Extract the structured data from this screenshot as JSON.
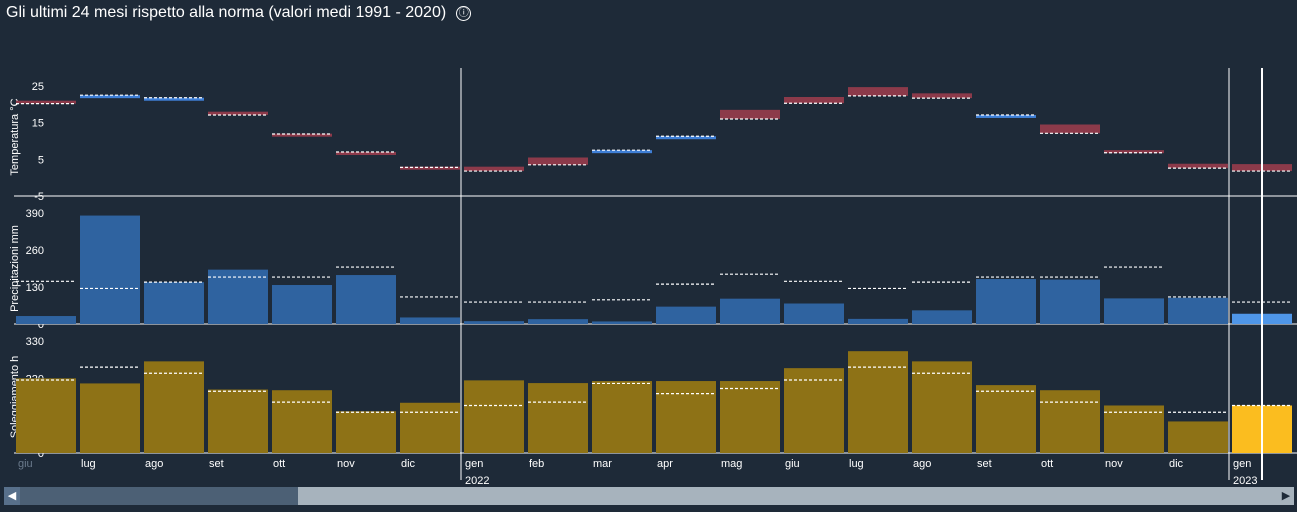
{
  "title": "Gli ultimi 24 mesi rispetto alla norma (valori medi 1991 - 2020)",
  "info_icon": "ⓘ",
  "colors": {
    "background": "#1e2a38",
    "temp_warm": "#8c3a4a",
    "temp_cold": "#3f7fd6",
    "precip_bar": "#2f63a0",
    "precip_highlight": "#4f96e8",
    "sun_bar": "#8e7216",
    "sun_highlight": "#fbbd1f",
    "norm_line": "#ffffff"
  },
  "scrollbar": {
    "left_arrow": "◀",
    "right_arrow": "▶"
  },
  "chart_data": [
    {
      "type": "bar",
      "name": "temperature",
      "ylabel": "Temperatura °C",
      "yticks": [
        25,
        15,
        5,
        -5
      ],
      "ylim": [
        -5,
        30
      ],
      "categories": [
        "giu",
        "lug",
        "ago",
        "set",
        "ott",
        "nov",
        "dic",
        "gen",
        "feb",
        "mar",
        "apr",
        "mag",
        "giu",
        "lug",
        "ago",
        "set",
        "ott",
        "nov",
        "dic",
        "gen"
      ],
      "values": [
        21,
        22,
        21,
        18,
        12,
        7,
        3,
        3,
        5.5,
        7,
        11,
        18.5,
        22,
        24.7,
        23,
        17,
        14.5,
        7.5,
        3.8,
        3.7
      ],
      "norms": [
        20.2,
        22.5,
        21.8,
        17.1,
        11.9,
        7.0,
        2.8,
        1.8,
        3.5,
        7.5,
        11.3,
        16.0,
        20.3,
        22.3,
        21.7,
        17.1,
        12.1,
        6.8,
        2.6,
        1.8
      ]
    },
    {
      "type": "bar",
      "name": "precipitation",
      "ylabel": "Precipitazioni mm",
      "yticks": [
        390,
        260,
        130,
        0
      ],
      "ylim": [
        0,
        390
      ],
      "categories": [
        "giu",
        "lug",
        "ago",
        "set",
        "ott",
        "nov",
        "dic",
        "gen",
        "feb",
        "mar",
        "apr",
        "mag",
        "giu",
        "lug",
        "ago",
        "set",
        "ott",
        "nov",
        "dic",
        "gen"
      ],
      "values": [
        28,
        381,
        147,
        191,
        137,
        172,
        23,
        10,
        17,
        9,
        61,
        89,
        72,
        18,
        48,
        158,
        156,
        90,
        92,
        36
      ],
      "norms": [
        150,
        125,
        147,
        165,
        165,
        200,
        95,
        77,
        77,
        85,
        140,
        175,
        150,
        125,
        147,
        165,
        165,
        200,
        95,
        77
      ]
    },
    {
      "type": "bar",
      "name": "sunshine",
      "ylabel": "Soleggiamento h",
      "yticks": [
        330,
        220,
        110,
        0
      ],
      "ylim": [
        0,
        330
      ],
      "categories": [
        "giu",
        "lug",
        "ago",
        "set",
        "ott",
        "nov",
        "dic",
        "gen",
        "feb",
        "mar",
        "apr",
        "mag",
        "giu",
        "lug",
        "ago",
        "set",
        "ott",
        "nov",
        "dic",
        "gen"
      ],
      "values": [
        220,
        205,
        270,
        187,
        185,
        123,
        148,
        214,
        206,
        212,
        212,
        212,
        250,
        300,
        270,
        200,
        185,
        140,
        93,
        140
      ],
      "norms": [
        215,
        253,
        235,
        182,
        150,
        120,
        120,
        140,
        150,
        205,
        175,
        190,
        215,
        253,
        235,
        182,
        150,
        120,
        120,
        140
      ]
    }
  ],
  "xaxis": {
    "first_label": "giu",
    "labels": [
      "lug",
      "ago",
      "set",
      "ott",
      "nov",
      "dic",
      "gen",
      "feb",
      "mar",
      "apr",
      "mag",
      "giu",
      "lug",
      "ago",
      "set",
      "ott",
      "nov",
      "dic",
      "gen"
    ],
    "years": [
      {
        "label": "2022"
      },
      {
        "label": "2023"
      }
    ]
  }
}
